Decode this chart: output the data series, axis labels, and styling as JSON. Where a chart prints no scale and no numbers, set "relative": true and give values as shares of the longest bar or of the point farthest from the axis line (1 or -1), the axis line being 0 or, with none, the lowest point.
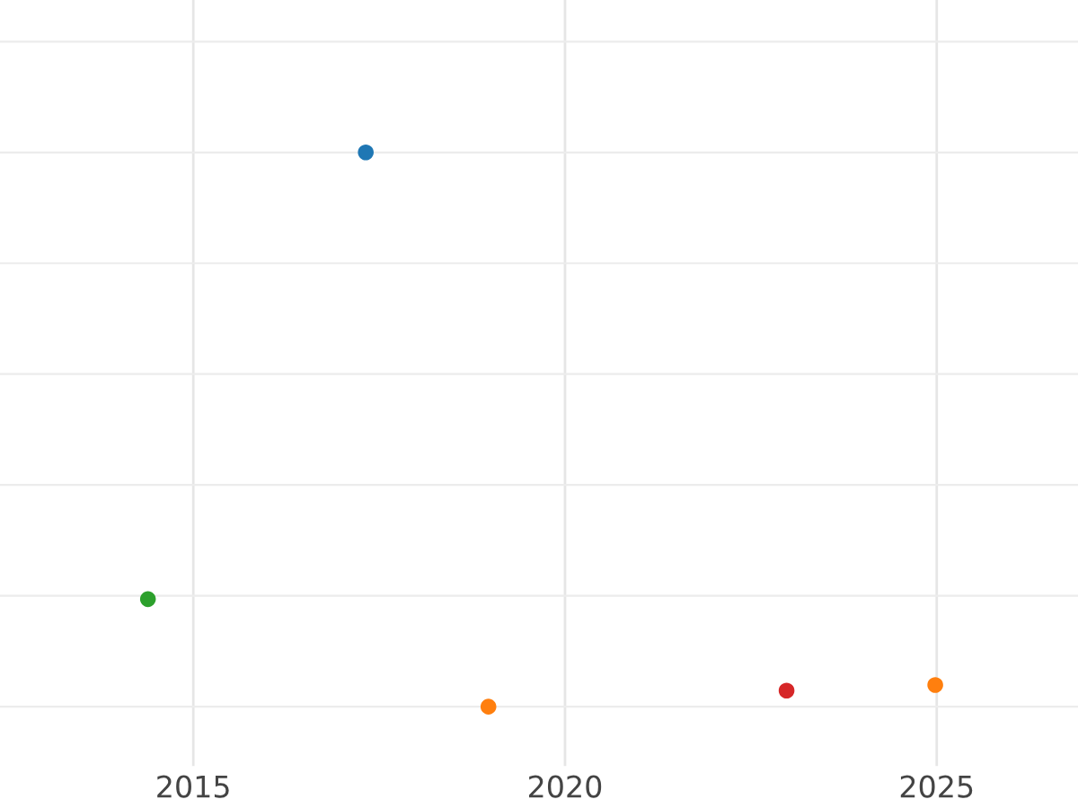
{
  "chart_data": {
    "type": "scatter",
    "relative": true,
    "x": [
      2017.32,
      2014.39,
      2018.97,
      2022.98,
      2024.98
    ],
    "values": [
      1,
      0.194,
      0,
      0.029,
      0.039
    ],
    "colors": [
      "#1f77b4",
      "#2ca02c",
      "#ff7f0e",
      "#d62728",
      "#ff7f0e"
    ],
    "xlim": [
      2012.4,
      2026.9
    ],
    "xticks": [
      2015,
      2020,
      2025
    ],
    "grid": true,
    "tick_labels": "x",
    "marker": "circle"
  }
}
